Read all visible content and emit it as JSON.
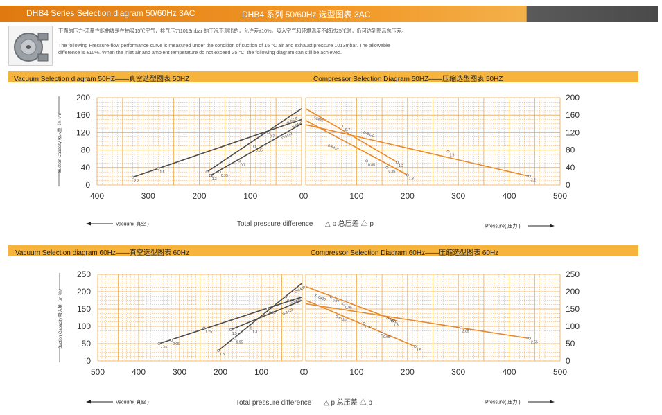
{
  "header": {
    "title_en": "DHB4 Series Selection diagram 50/60Hz 3AC",
    "title_cn": "DHB4 系列 50/60Hz 选型图表 3AC",
    "intro_cn": "下面的压力-流量性能曲线是在抽吸15℃空气，排气压力1013mbar 的工况下测出的，允许差±10%。吸入空气和环境温度不超过25℃时，仍可达到图示总压差。",
    "intro_en_1": "The following Pressure-flow performance curve is measured under the condition of suction of 15 °C air and exhaust pressure 1013mbar. The allowable",
    "intro_en_2": "difference is ±10%. When the inlet air and ambient temperature do not exceed 25 °C, the following diagram can still be achieved."
  },
  "colors": {
    "vacuum_line": "#4d4d4d",
    "pressure_line": "#e8892a",
    "grid": "#f0a640",
    "banner": "#f6b43c"
  },
  "chart_data": [
    {
      "type": "line",
      "title": "Vacuum Selection diagram 50HZ——真空选型图表 50HZ",
      "ylabel": "Suction Capacity 吸入量（m ³/h）",
      "ylim": [
        0,
        200
      ],
      "yticks": [
        0,
        40,
        80,
        120,
        160,
        200
      ],
      "xlim": [
        400,
        0
      ],
      "xticks": [
        400,
        300,
        200,
        100,
        0
      ],
      "series": [
        {
          "name": "",
          "points": [
            [
              330,
              18
            ],
            [
              0,
              150
            ]
          ],
          "labels": [
            {
              "at": [
                330,
                18
              ],
              "text": "2.2"
            },
            {
              "at": [
                280,
                38
              ],
              "text": "1.6"
            }
          ]
        },
        {
          "name": "",
          "points": [
            [
              185,
              30
            ],
            [
              0,
              175
            ]
          ],
          "labels": [
            {
              "at": [
                185,
                30
              ],
              "text": "1.2"
            },
            {
              "at": [
                92,
                88
              ],
              "text": "0.85"
            },
            {
              "at": [
                65,
                120
              ],
              "text": "0.7"
            },
            {
              "at": [
                30,
                150
              ],
              "text": "D-8420"
            }
          ]
        },
        {
          "name": "",
          "points": [
            [
              178,
              22
            ],
            [
              0,
              140
            ]
          ],
          "labels": [
            {
              "at": [
                178,
                22
              ],
              "text": "1.3"
            },
            {
              "at": [
                160,
                30
              ],
              "text": "0.95"
            },
            {
              "at": [
                122,
                55
              ],
              "text": "0.7"
            },
            {
              "at": [
                40,
                115
              ],
              "text": "D-8410"
            }
          ]
        },
        {
          "name": "",
          "points": [
            [
              0,
              155
            ]
          ],
          "labels": [
            {
              "at": [
                20,
                140
              ],
              "text": "D-8430"
            }
          ]
        }
      ],
      "xlabel": "Total pressure difference",
      "xlabel_cn": "△ p 总压差 △ p",
      "direction": "Vacuum( 真空 )"
    },
    {
      "type": "line",
      "title": "Compressor Selection Diagram 50HZ——压缩选型图表 50HZ",
      "ylabel": "",
      "ylim": [
        0,
        200
      ],
      "yticks": [
        0,
        40,
        80,
        120,
        160,
        200
      ],
      "xlim": [
        0,
        500
      ],
      "xticks": [
        0,
        100,
        200,
        300,
        400,
        500
      ],
      "series": [
        {
          "name": "",
          "points": [
            [
              0,
              175
            ],
            [
              180,
              52
            ]
          ],
          "labels": [
            {
              "at": [
                10,
                165
              ],
              "text": "D-8430"
            },
            {
              "at": [
                75,
                135
              ],
              "text": "0.7"
            },
            {
              "at": [
                180,
                52
              ],
              "text": "1.2"
            }
          ]
        },
        {
          "name": "",
          "points": [
            [
              0,
              148
            ],
            [
              200,
              23
            ]
          ],
          "labels": [
            {
              "at": [
                40,
                100
              ],
              "text": "D-8410"
            },
            {
              "at": [
                120,
                55
              ],
              "text": "0.85"
            },
            {
              "at": [
                160,
                40
              ],
              "text": "0.95"
            },
            {
              "at": [
                200,
                23
              ],
              "text": "1.3"
            }
          ]
        },
        {
          "name": "",
          "points": [
            [
              0,
              138
            ],
            [
              440,
              20
            ]
          ],
          "labels": [
            {
              "at": [
                110,
                130
              ],
              "text": "D-8420"
            },
            {
              "at": [
                280,
                77
              ],
              "text": "1.6"
            },
            {
              "at": [
                440,
                20
              ],
              "text": "2.2"
            }
          ]
        }
      ],
      "xlabel": "",
      "direction": "Pressure( 压力 )"
    },
    {
      "type": "line",
      "title": "Vacuum Selection diagram 60Hz——真空选型图表 60Hz",
      "ylabel": "Suction Capacity 吸入量（m ³/h）",
      "ylim": [
        0,
        250
      ],
      "yticks": [
        0,
        50,
        100,
        150,
        200,
        250
      ],
      "xlim": [
        500,
        0
      ],
      "xticks": [
        500,
        400,
        300,
        200,
        100,
        0
      ],
      "series": [
        {
          "name": "",
          "points": [
            [
              350,
              50
            ],
            [
              0,
              185
            ]
          ],
          "labels": [
            {
              "at": [
                350,
                50
              ],
              "text": "2.55"
            },
            {
              "at": [
                320,
                60
              ],
              "text": "2.05"
            },
            {
              "at": [
                240,
                95
              ],
              "text": "1.75"
            }
          ]
        },
        {
          "name": "",
          "points": [
            [
              205,
              30
            ],
            [
              0,
              225
            ]
          ],
          "labels": [
            {
              "at": [
                205,
                30
              ],
              "text": "1.5"
            },
            {
              "at": [
                165,
                65
              ],
              "text": "0.95"
            },
            {
              "at": [
                85,
                150
              ],
              "text": "0.65"
            },
            {
              "at": [
                40,
                185
              ],
              "text": "0.83"
            },
            {
              "at": [
                20,
                210
              ],
              "text": "D-8430"
            }
          ]
        },
        {
          "name": "",
          "points": [
            [
              175,
              90
            ],
            [
              0,
              175
            ]
          ],
          "labels": [
            {
              "at": [
                175,
                90
              ],
              "text": "1.5"
            },
            {
              "at": [
                125,
                95
              ],
              "text": "1.3"
            },
            {
              "at": [
                50,
                145
              ],
              "text": "D-8410"
            },
            {
              "at": [
                30,
                175
              ],
              "text": "D-8420"
            }
          ]
        }
      ],
      "xlabel": "Total pressure difference",
      "xlabel_cn": "△ p 总压差 △ p",
      "direction": "Vacuum( 真空 )"
    },
    {
      "type": "line",
      "title": "Compressor Selection Diagram 60Hz——压缩选型图表 60Hz",
      "ylabel": "",
      "ylim": [
        0,
        250
      ],
      "yticks": [
        0,
        50,
        100,
        150,
        200,
        250
      ],
      "xlim": [
        0,
        500
      ],
      "xticks": [
        0,
        100,
        200,
        300,
        400,
        500
      ],
      "series": [
        {
          "name": "",
          "points": [
            [
              0,
              215
            ],
            [
              180,
              115
            ]
          ],
          "labels": [
            {
              "at": [
                15,
                200
              ],
              "text": "D-8430"
            },
            {
              "at": [
                50,
                185
              ],
              "text": "0.85"
            },
            {
              "at": [
                75,
                165
              ],
              "text": "0.95"
            },
            {
              "at": [
                170,
                115
              ],
              "text": "1.3"
            },
            {
              "at": [
                155,
                135
              ],
              "text": "D-8420"
            }
          ]
        },
        {
          "name": "",
          "points": [
            [
              0,
              175
            ],
            [
              215,
              42
            ]
          ],
          "labels": [
            {
              "at": [
                55,
                140
              ],
              "text": "D-8410"
            },
            {
              "at": [
                115,
                108
              ],
              "text": "0.83"
            },
            {
              "at": [
                150,
                80
              ],
              "text": "0.95"
            },
            {
              "at": [
                215,
                42
              ],
              "text": "1.5"
            }
          ]
        },
        {
          "name": "",
          "points": [
            [
              0,
              165
            ],
            [
              440,
              65
            ]
          ],
          "labels": [
            {
              "at": [
                305,
                97
              ],
              "text": "2.05"
            },
            {
              "at": [
                440,
                65
              ],
              "text": "2.55"
            }
          ]
        }
      ],
      "xlabel": "",
      "direction": "Pressure( 压力 )"
    }
  ]
}
